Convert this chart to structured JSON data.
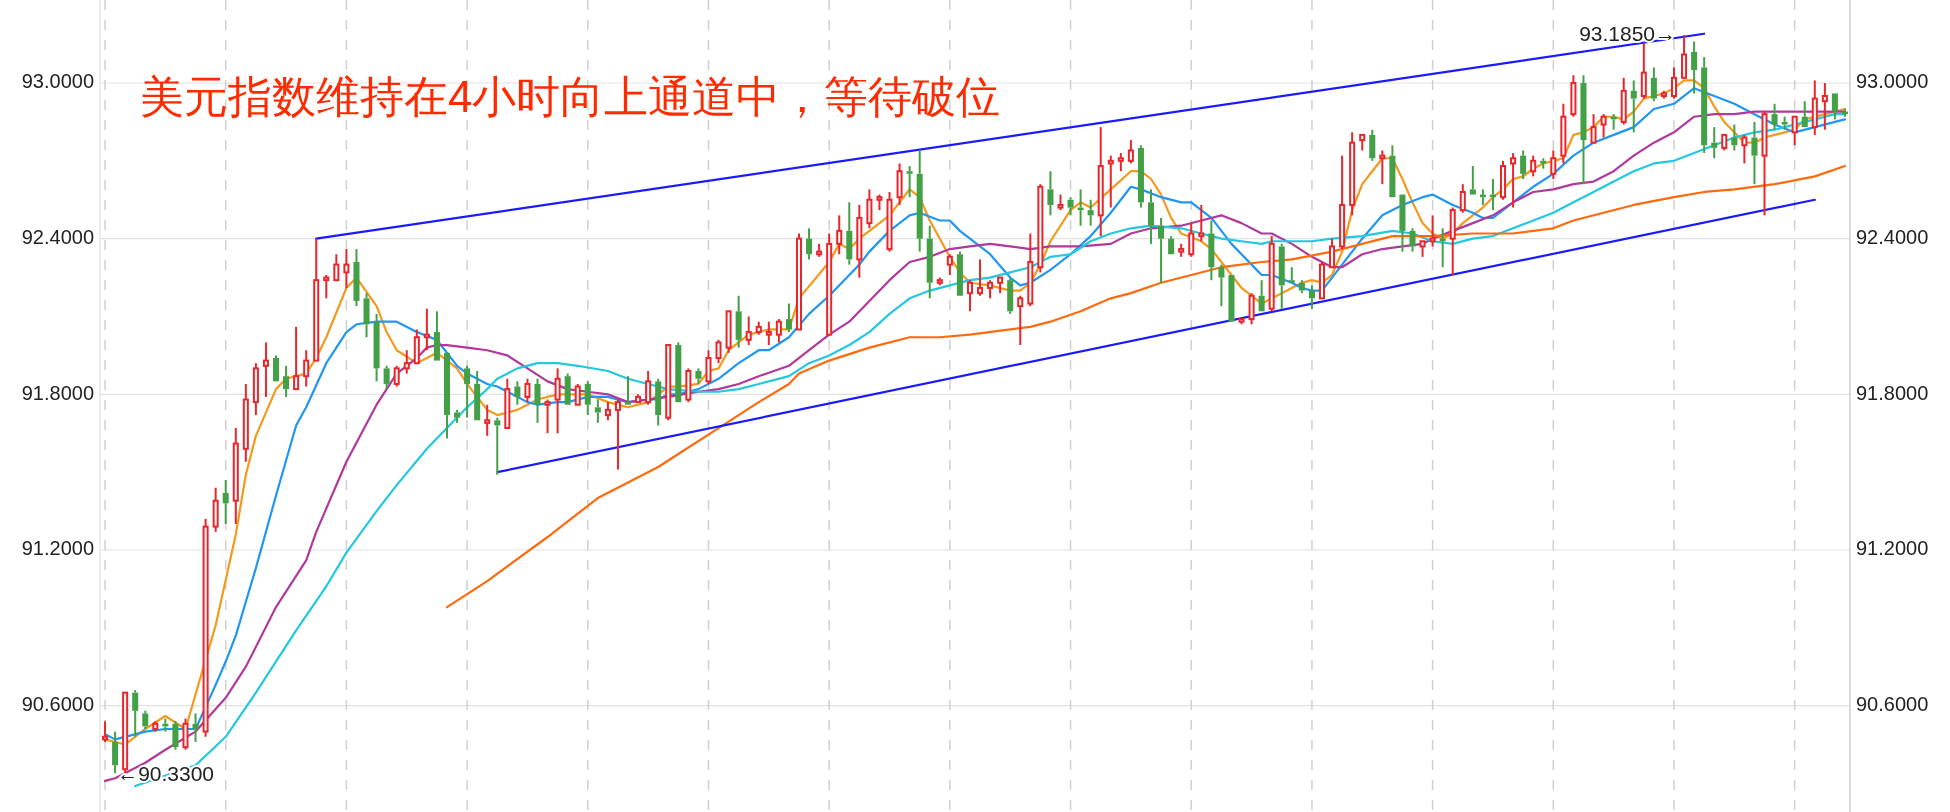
{
  "chart_data": {
    "type": "candlestick",
    "title": "美元指数维持在4小时向上通道中，等待破位",
    "categories": [
      null,
      null,
      null,
      null,
      null,
      null,
      null,
      null,
      null,
      null,
      null,
      null,
      null,
      null,
      null,
      null,
      null,
      null,
      null,
      null,
      null,
      null,
      null,
      null,
      null,
      null,
      null,
      null,
      null,
      null,
      null,
      null,
      null,
      null,
      null,
      null,
      null,
      null,
      null,
      null,
      null,
      null,
      null,
      null,
      null,
      null,
      null,
      null,
      null,
      null,
      null,
      null,
      null,
      null,
      null,
      null,
      null,
      null,
      null,
      null,
      null,
      null,
      null,
      null,
      null,
      null,
      null,
      null,
      null,
      null,
      null,
      null,
      null,
      null,
      null,
      null,
      null,
      null,
      null,
      null,
      null,
      null,
      null,
      null,
      null,
      null,
      null,
      null,
      null,
      null,
      null,
      null,
      null,
      null,
      null,
      null,
      null,
      null,
      null,
      null,
      null,
      null,
      null,
      null,
      null,
      null,
      null,
      null,
      null,
      null,
      null,
      null,
      null,
      null,
      null,
      null,
      null,
      null,
      null,
      null,
      null,
      null,
      null,
      null,
      null,
      null,
      null,
      null,
      null,
      null,
      null,
      null,
      null,
      null,
      null,
      null,
      null,
      null,
      null,
      null,
      null,
      null,
      null,
      null,
      null,
      null,
      null,
      null,
      null,
      null,
      null,
      null,
      null,
      null,
      null,
      null,
      null,
      null,
      null,
      null,
      null,
      null,
      null,
      null,
      null,
      null,
      null,
      null,
      null,
      null,
      null,
      null,
      null,
      null
    ],
    "ohlc": [
      [
        90.47,
        90.54,
        90.46,
        90.48
      ],
      [
        90.46,
        90.5,
        90.34,
        90.37
      ],
      [
        90.355,
        90.65,
        90.33,
        90.65
      ],
      [
        90.65,
        90.66,
        90.48,
        90.58
      ],
      [
        90.57,
        90.58,
        90.51,
        90.52
      ],
      [
        90.51,
        90.54,
        90.5,
        90.53
      ],
      [
        90.53,
        90.55,
        90.5,
        90.52
      ],
      [
        90.53,
        90.54,
        90.43,
        90.44
      ],
      [
        90.44,
        90.55,
        90.43,
        90.53
      ],
      [
        90.53,
        90.57,
        90.46,
        90.51
      ],
      [
        90.5,
        91.32,
        90.48,
        91.29
      ],
      [
        91.29,
        91.44,
        91.27,
        91.39
      ],
      [
        91.42,
        91.47,
        91.3,
        91.38
      ],
      [
        91.39,
        91.67,
        91.3,
        91.61
      ],
      [
        91.59,
        91.84,
        91.54,
        91.78
      ],
      [
        91.77,
        91.92,
        91.72,
        91.9
      ],
      [
        91.91,
        92.0,
        91.79,
        91.93
      ],
      [
        91.94,
        91.95,
        91.85,
        91.85
      ],
      [
        91.87,
        91.91,
        91.79,
        91.82
      ],
      [
        91.82,
        92.06,
        91.82,
        91.87
      ],
      [
        91.87,
        91.97,
        91.83,
        91.93
      ],
      [
        91.93,
        92.4,
        91.93,
        92.24
      ],
      [
        92.24,
        92.26,
        92.17,
        92.25
      ],
      [
        92.24,
        92.34,
        92.24,
        92.3
      ],
      [
        92.27,
        92.36,
        92.21,
        92.3
      ],
      [
        92.31,
        92.36,
        92.14,
        92.16
      ],
      [
        92.17,
        92.19,
        92.02,
        92.07
      ],
      [
        92.08,
        92.11,
        91.85,
        91.9
      ],
      [
        91.9,
        91.91,
        91.82,
        91.84
      ],
      [
        91.84,
        91.91,
        91.83,
        91.9
      ],
      [
        91.9,
        91.97,
        91.88,
        91.92
      ],
      [
        91.92,
        92.05,
        91.92,
        92.02
      ],
      [
        92.02,
        92.13,
        91.97,
        92.03
      ],
      [
        92.04,
        92.12,
        91.93,
        91.93
      ],
      [
        91.96,
        91.96,
        91.63,
        91.72
      ],
      [
        91.73,
        91.74,
        91.69,
        91.71
      ],
      [
        91.9,
        91.91,
        91.71,
        91.84
      ],
      [
        91.84,
        91.89,
        91.7,
        91.7
      ],
      [
        91.69,
        91.76,
        91.64,
        91.7
      ],
      [
        91.7,
        91.71,
        91.49,
        91.68
      ],
      [
        91.67,
        91.86,
        91.67,
        91.82
      ],
      [
        91.83,
        91.85,
        91.76,
        91.79
      ],
      [
        91.79,
        91.86,
        91.77,
        91.84
      ],
      [
        91.84,
        91.86,
        91.69,
        91.76
      ],
      [
        91.76,
        91.78,
        91.65,
        91.77
      ],
      [
        91.78,
        91.9,
        91.65,
        91.86
      ],
      [
        91.87,
        91.88,
        91.76,
        91.76
      ],
      [
        91.76,
        91.84,
        91.76,
        91.83
      ],
      [
        91.84,
        91.85,
        91.72,
        91.76
      ],
      [
        91.75,
        91.78,
        91.69,
        91.73
      ],
      [
        91.72,
        91.77,
        91.7,
        91.74
      ],
      [
        91.74,
        91.78,
        91.51,
        91.77
      ],
      [
        91.77,
        91.87,
        91.76,
        91.76
      ],
      [
        91.77,
        91.8,
        91.77,
        91.79
      ],
      [
        91.77,
        91.89,
        91.76,
        91.85
      ],
      [
        91.85,
        91.86,
        91.68,
        91.72
      ],
      [
        91.71,
        91.99,
        91.7,
        91.99
      ],
      [
        91.99,
        92.0,
        91.77,
        91.77
      ],
      [
        91.78,
        91.9,
        91.77,
        91.89
      ],
      [
        91.89,
        91.9,
        91.84,
        91.86
      ],
      [
        91.85,
        91.97,
        91.84,
        91.94
      ],
      [
        91.94,
        92.01,
        91.92,
        92.0
      ],
      [
        91.98,
        92.12,
        91.96,
        92.12
      ],
      [
        92.12,
        92.18,
        91.98,
        92.01
      ],
      [
        92.01,
        92.1,
        91.99,
        92.04
      ],
      [
        92.04,
        92.08,
        92.03,
        92.06
      ],
      [
        92.03,
        92.08,
        91.99,
        92.04
      ],
      [
        92.03,
        92.09,
        92.0,
        92.08
      ],
      [
        92.09,
        92.15,
        92.04,
        92.05
      ],
      [
        92.05,
        92.42,
        92.05,
        92.4
      ],
      [
        92.4,
        92.44,
        92.32,
        92.34
      ],
      [
        92.34,
        92.38,
        92.33,
        92.35
      ],
      [
        92.03,
        92.42,
        92.03,
        92.38
      ],
      [
        92.38,
        92.49,
        92.34,
        92.43
      ],
      [
        92.43,
        92.54,
        92.3,
        92.32
      ],
      [
        92.32,
        92.53,
        92.25,
        92.48
      ],
      [
        92.46,
        92.59,
        92.44,
        92.55
      ],
      [
        92.55,
        92.57,
        92.51,
        92.56
      ],
      [
        92.36,
        92.58,
        92.35,
        92.55
      ],
      [
        92.56,
        92.69,
        92.53,
        92.66
      ],
      [
        92.66,
        92.68,
        92.56,
        92.65
      ],
      [
        92.65,
        92.74,
        92.35,
        92.4
      ],
      [
        92.4,
        92.45,
        92.17,
        92.23
      ],
      [
        92.23,
        92.25,
        92.22,
        92.24
      ],
      [
        92.3,
        92.34,
        92.26,
        92.33
      ],
      [
        92.34,
        92.35,
        92.18,
        92.18
      ],
      [
        92.19,
        92.24,
        92.12,
        92.23
      ],
      [
        92.19,
        92.32,
        92.18,
        92.21
      ],
      [
        92.21,
        92.24,
        92.17,
        92.23
      ],
      [
        92.23,
        92.25,
        92.19,
        92.25
      ],
      [
        92.24,
        92.25,
        92.11,
        92.12
      ],
      [
        92.14,
        92.18,
        91.99,
        92.17
      ],
      [
        92.15,
        92.42,
        92.14,
        92.31
      ],
      [
        92.29,
        92.61,
        92.27,
        92.6
      ],
      [
        92.59,
        92.66,
        92.49,
        92.53
      ],
      [
        92.52,
        92.57,
        92.51,
        92.53
      ],
      [
        92.55,
        92.56,
        92.49,
        92.52
      ],
      [
        92.52,
        92.59,
        92.45,
        92.51
      ],
      [
        92.51,
        92.55,
        92.45,
        92.49
      ],
      [
        92.49,
        92.83,
        92.41,
        92.68
      ],
      [
        92.69,
        92.72,
        92.52,
        92.7
      ],
      [
        92.7,
        92.73,
        92.66,
        92.71
      ],
      [
        92.7,
        92.78,
        92.69,
        92.74
      ],
      [
        92.75,
        92.76,
        92.52,
        92.54
      ],
      [
        92.54,
        92.59,
        92.38,
        92.45
      ],
      [
        92.45,
        92.48,
        92.23,
        92.4
      ],
      [
        92.4,
        92.41,
        92.34,
        92.34
      ],
      [
        92.35,
        92.38,
        92.33,
        92.36
      ],
      [
        92.34,
        92.46,
        92.33,
        92.42
      ],
      [
        92.41,
        92.53,
        92.39,
        92.42
      ],
      [
        92.42,
        92.47,
        92.24,
        92.29
      ],
      [
        92.29,
        92.3,
        92.14,
        92.25
      ],
      [
        92.26,
        92.26,
        92.08,
        92.08
      ],
      [
        92.08,
        92.09,
        92.07,
        92.09
      ],
      [
        92.09,
        92.19,
        92.07,
        92.18
      ],
      [
        92.18,
        92.24,
        92.12,
        92.12
      ],
      [
        92.13,
        92.41,
        92.12,
        92.38
      ],
      [
        92.37,
        92.38,
        92.13,
        92.22
      ],
      [
        92.24,
        92.29,
        92.23,
        92.23
      ],
      [
        92.23,
        92.24,
        92.19,
        92.2
      ],
      [
        92.2,
        92.22,
        92.13,
        92.17
      ],
      [
        92.17,
        92.31,
        92.17,
        92.3
      ],
      [
        92.29,
        92.4,
        92.29,
        92.37
      ],
      [
        92.37,
        92.72,
        92.36,
        92.53
      ],
      [
        92.53,
        92.81,
        92.49,
        92.77
      ],
      [
        92.78,
        92.8,
        92.74,
        92.8
      ],
      [
        92.8,
        92.82,
        92.7,
        92.71
      ],
      [
        92.71,
        92.74,
        92.61,
        92.72
      ],
      [
        92.72,
        92.76,
        92.56,
        92.56
      ],
      [
        92.57,
        92.57,
        92.35,
        92.43
      ],
      [
        92.43,
        92.44,
        92.35,
        92.37
      ],
      [
        92.37,
        92.39,
        92.33,
        92.39
      ],
      [
        92.39,
        92.49,
        92.37,
        92.4
      ],
      [
        92.4,
        92.44,
        92.29,
        92.39
      ],
      [
        92.4,
        92.52,
        92.26,
        92.51
      ],
      [
        92.51,
        92.61,
        92.5,
        92.58
      ],
      [
        92.59,
        92.68,
        92.57,
        92.57
      ],
      [
        92.57,
        92.59,
        92.53,
        92.56
      ],
      [
        92.57,
        92.63,
        92.51,
        92.56
      ],
      [
        92.56,
        92.7,
        92.55,
        92.68
      ],
      [
        92.69,
        92.73,
        92.52,
        92.71
      ],
      [
        92.72,
        92.74,
        92.63,
        92.65
      ],
      [
        92.66,
        92.72,
        92.64,
        92.7
      ],
      [
        92.7,
        92.71,
        92.67,
        92.69
      ],
      [
        92.65,
        92.74,
        92.63,
        92.71
      ],
      [
        92.72,
        92.92,
        92.69,
        92.87
      ],
      [
        92.88,
        93.03,
        92.87,
        93.0
      ],
      [
        93.0,
        93.03,
        92.61,
        92.78
      ],
      [
        92.77,
        92.88,
        92.77,
        92.83
      ],
      [
        92.84,
        92.88,
        92.79,
        92.87
      ],
      [
        92.87,
        92.88,
        92.82,
        92.86
      ],
      [
        92.85,
        93.02,
        92.84,
        92.97
      ],
      [
        92.97,
        93.01,
        92.81,
        92.94
      ],
      [
        92.95,
        93.155,
        92.94,
        93.04
      ],
      [
        93.02,
        93.06,
        92.93,
        92.94
      ],
      [
        92.95,
        92.97,
        92.94,
        92.96
      ],
      [
        92.95,
        93.06,
        92.94,
        93.02
      ],
      [
        93.02,
        93.185,
        93.02,
        93.11
      ],
      [
        93.12,
        93.16,
        92.96,
        93.05
      ],
      [
        93.06,
        93.1,
        92.73,
        92.76
      ],
      [
        92.77,
        92.83,
        92.71,
        92.75
      ],
      [
        92.75,
        92.8,
        92.74,
        92.8
      ],
      [
        92.79,
        92.84,
        92.74,
        92.76
      ],
      [
        92.76,
        92.8,
        92.69,
        92.79
      ],
      [
        92.79,
        92.85,
        92.61,
        92.72
      ],
      [
        92.72,
        92.89,
        92.49,
        92.88
      ],
      [
        92.88,
        92.92,
        92.82,
        92.84
      ],
      [
        92.85,
        92.87,
        92.82,
        92.84
      ],
      [
        92.81,
        92.87,
        92.76,
        92.87
      ],
      [
        92.87,
        92.93,
        92.83,
        92.83
      ],
      [
        92.83,
        93.01,
        92.8,
        92.94
      ],
      [
        92.93,
        93.0,
        92.82,
        92.95
      ],
      [
        92.96,
        92.96,
        92.86,
        92.89
      ],
      [
        92.89,
        92.9,
        92.87,
        92.88
      ]
    ],
    "series": [
      {
        "type": "line",
        "color": "#f39a1e",
        "values": [
          90.47,
          null,
          90.45,
          null,
          90.51,
          null,
          90.56,
          null,
          90.51,
          null,
          null,
          90.91,
          null,
          91.26,
          91.49,
          91.64,
          null,
          91.82,
          91.86,
          null,
          91.88,
          91.94,
          92.02,
          null,
          92.21,
          92.25,
          null,
          92.14,
          92.04,
          91.97,
          null,
          91.92,
          null,
          91.96,
          null,
          91.9,
          91.84,
          null,
          91.74,
          91.72,
          null,
          91.74,
          null,
          91.78,
          null,
          91.8,
          null,
          null,
          91.8,
          null,
          91.77,
          null,
          91.75,
          null,
          91.77,
          null,
          91.83,
          91.83,
          null,
          91.84,
          91.89,
          91.9,
          91.97,
          null,
          92.03,
          null,
          92.05,
          null,
          92.05,
          92.17,
          null,
          null,
          92.31,
          92.38,
          92.36,
          92.4,
          null,
          92.46,
          92.49,
          null,
          92.59,
          92.56,
          92.47,
          null,
          92.33,
          92.27,
          92.23,
          null,
          92.22,
          null,
          92.2,
          92.2,
          92.23,
          92.3,
          92.39,
          null,
          92.51,
          92.54,
          92.52,
          null,
          92.59,
          null,
          92.66,
          92.66,
          92.63,
          92.57,
          92.48,
          92.42,
          null,
          92.39,
          92.36,
          92.31,
          92.26,
          92.21,
          92.18,
          92.15,
          null,
          92.19,
          null,
          92.23,
          92.24,
          92.23,
          92.26,
          92.35,
          92.51,
          92.61,
          92.66,
          92.71,
          92.71,
          92.63,
          92.54,
          92.46,
          92.42,
          92.4,
          92.42,
          92.46,
          92.49,
          92.52,
          92.56,
          92.59,
          92.63,
          92.64,
          92.67,
          92.69,
          92.7,
          92.71,
          92.8,
          92.81,
          92.83,
          92.87,
          92.87,
          92.86,
          92.89,
          92.94,
          92.95,
          92.96,
          92.98,
          93.01,
          93.01,
          92.98,
          92.91,
          92.85,
          92.81,
          92.77,
          92.77,
          92.79,
          92.8,
          92.81,
          92.82,
          92.86,
          92.87,
          92.88,
          92.89,
          92.9
        ]
      },
      {
        "type": "line",
        "color": "#2196f3",
        "values": [
          90.49,
          90.47,
          null,
          null,
          90.5,
          null,
          90.51,
          null,
          null,
          90.51,
          null,
          90.68,
          90.77,
          90.87,
          null,
          91.13,
          null,
          91.41,
          null,
          91.68,
          91.75,
          null,
          91.92,
          null,
          92.04,
          92.07,
          null,
          92.08,
          null,
          92.08,
          null,
          92.04,
          null,
          92.01,
          null,
          91.91,
          91.88,
          null,
          91.84,
          91.83,
          91.81,
          null,
          91.77,
          91.76,
          null,
          91.77,
          91.77,
          null,
          91.79,
          null,
          91.79,
          null,
          91.77,
          null,
          91.78,
          91.78,
          91.8,
          91.8,
          null,
          91.82,
          null,
          91.86,
          null,
          91.92,
          null,
          91.97,
          91.97,
          null,
          92.02,
          null,
          92.11,
          null,
          92.18,
          null,
          92.26,
          92.3,
          92.35,
          null,
          92.43,
          null,
          92.49,
          92.5,
          null,
          92.47,
          92.47,
          92.43,
          92.4,
          null,
          92.34,
          null,
          92.25,
          92.22,
          92.23,
          null,
          92.28,
          null,
          92.34,
          null,
          92.41,
          null,
          92.5,
          null,
          92.6,
          92.59,
          null,
          92.56,
          null,
          92.54,
          92.54,
          null,
          92.48,
          null,
          92.38,
          null,
          92.3,
          92.26,
          92.26,
          null,
          92.23,
          92.21,
          92.2,
          92.2,
          null,
          92.3,
          null,
          92.4,
          null,
          92.49,
          null,
          92.53,
          null,
          92.56,
          92.57,
          null,
          92.53,
          null,
          92.5,
          92.48,
          92.48,
          null,
          92.54,
          null,
          92.6,
          null,
          92.65,
          null,
          92.72,
          null,
          92.77,
          null,
          92.8,
          null,
          92.83,
          null,
          92.9,
          null,
          92.92,
          null,
          92.98,
          null,
          92.95,
          null,
          92.92,
          null,
          92.88,
          null,
          92.84,
          null,
          92.81,
          null,
          92.83,
          null,
          92.85,
          92.86
        ]
      },
      {
        "type": "line",
        "color": "#b0399b",
        "values": [
          90.31,
          90.32,
          null,
          null,
          90.38,
          null,
          90.43,
          null,
          null,
          90.5,
          null,
          null,
          90.63,
          null,
          90.75,
          null,
          null,
          90.98,
          null,
          null,
          91.16,
          91.27,
          null,
          null,
          91.54,
          null,
          null,
          91.76,
          null,
          91.88,
          null,
          91.94,
          91.98,
          91.99,
          91.99,
          null,
          91.98,
          null,
          91.97,
          null,
          91.95,
          null,
          91.9,
          null,
          91.85,
          null,
          91.82,
          null,
          91.81,
          null,
          91.8,
          null,
          91.77,
          null,
          91.78,
          null,
          91.79,
          null,
          null,
          91.81,
          null,
          91.82,
          null,
          91.84,
          null,
          91.87,
          null,
          null,
          91.91,
          null,
          91.97,
          null,
          92.03,
          null,
          92.08,
          null,
          92.16,
          null,
          92.24,
          null,
          92.31,
          null,
          92.33,
          null,
          92.36,
          null,
          92.37,
          null,
          92.38,
          null,
          92.37,
          null,
          92.36,
          null,
          92.37,
          null,
          null,
          92.37,
          null,
          null,
          92.38,
          null,
          92.42,
          null,
          92.44,
          null,
          null,
          92.45,
          null,
          92.47,
          null,
          92.49,
          null,
          92.46,
          null,
          92.42,
          92.42,
          null,
          92.38,
          null,
          92.33,
          null,
          92.29,
          92.29,
          null,
          92.34,
          null,
          92.36,
          null,
          92.37,
          null,
          92.38,
          92.4,
          null,
          92.43,
          null,
          92.46,
          null,
          92.49,
          null,
          92.54,
          null,
          92.58,
          null,
          92.59,
          null,
          92.61,
          null,
          92.62,
          null,
          92.66,
          null,
          92.72,
          null,
          92.77,
          null,
          92.81,
          null,
          92.87,
          null,
          92.88,
          null,
          92.88,
          null,
          92.89,
          null,
          92.89,
          null,
          92.89,
          null,
          92.89,
          null,
          92.89,
          92.89
        ]
      },
      {
        "type": "line",
        "color": "#22c8e0",
        "values": [
          null,
          null,
          null,
          90.29,
          null,
          null,
          null,
          null,
          null,
          90.37,
          null,
          null,
          90.48,
          null,
          null,
          90.65,
          null,
          null,
          null,
          90.89,
          null,
          null,
          91.06,
          null,
          91.19,
          null,
          null,
          91.35,
          null,
          91.45,
          null,
          null,
          91.59,
          null,
          91.67,
          null,
          91.75,
          null,
          91.82,
          91.86,
          null,
          91.9,
          null,
          91.92,
          null,
          91.92,
          null,
          91.91,
          null,
          null,
          91.89,
          null,
          91.86,
          null,
          91.84,
          null,
          91.82,
          null,
          null,
          91.81,
          null,
          91.81,
          null,
          91.82,
          null,
          91.84,
          null,
          null,
          91.87,
          null,
          91.92,
          null,
          91.95,
          null,
          91.99,
          null,
          92.04,
          null,
          92.11,
          null,
          92.17,
          null,
          92.2,
          null,
          92.22,
          null,
          92.24,
          null,
          92.25,
          null,
          92.27,
          null,
          92.29,
          null,
          92.33,
          null,
          92.34,
          null,
          92.39,
          null,
          92.42,
          null,
          92.44,
          null,
          92.45,
          null,
          null,
          92.44,
          null,
          92.42,
          null,
          92.4,
          null,
          92.39,
          null,
          92.38,
          92.39,
          null,
          null,
          null,
          92.39,
          null,
          92.4,
          null,
          null,
          92.41,
          null,
          null,
          92.43,
          null,
          92.42,
          null,
          92.39,
          null,
          92.38,
          null,
          92.4,
          null,
          92.41,
          null,
          92.44,
          null,
          92.47,
          null,
          92.5,
          null,
          92.54,
          null,
          92.58,
          null,
          92.62,
          null,
          92.66,
          null,
          92.69,
          null,
          92.7,
          null,
          92.73,
          null,
          92.76,
          null,
          92.79,
          null,
          92.81,
          null,
          92.82,
          null,
          92.84,
          null,
          92.86,
          null,
          92.88,
          92.88
        ]
      },
      {
        "type": "line",
        "color": "#ff6a0d",
        "values": [
          null,
          null,
          null,
          null,
          null,
          null,
          null,
          null,
          null,
          null,
          null,
          null,
          null,
          null,
          null,
          null,
          null,
          null,
          null,
          null,
          null,
          null,
          null,
          null,
          null,
          null,
          null,
          null,
          null,
          null,
          null,
          null,
          null,
          null,
          90.98,
          null,
          null,
          null,
          91.08,
          null,
          null,
          null,
          null,
          null,
          91.25,
          null,
          null,
          null,
          null,
          91.4,
          null,
          null,
          null,
          null,
          null,
          91.52,
          null,
          91.57,
          null,
          null,
          null,
          91.67,
          null,
          null,
          null,
          91.77,
          null,
          null,
          91.84,
          91.88,
          null,
          null,
          91.93,
          null,
          null,
          null,
          91.98,
          null,
          null,
          null,
          92.02,
          null,
          null,
          92.02,
          null,
          null,
          92.03,
          null,
          null,
          null,
          null,
          null,
          92.06,
          null,
          92.08,
          null,
          null,
          92.12,
          null,
          null,
          92.17,
          null,
          92.19,
          null,
          null,
          92.23,
          null,
          null,
          92.26,
          null,
          null,
          92.29,
          null,
          null,
          null,
          92.31,
          null,
          null,
          92.32,
          null,
          null,
          null,
          92.35,
          null,
          null,
          92.38,
          null,
          null,
          92.41,
          null,
          null,
          null,
          92.41,
          null,
          null,
          null,
          92.42,
          null,
          null,
          null,
          92.42,
          null,
          92.43,
          null,
          92.44,
          null,
          92.47,
          null,
          null,
          92.5,
          null,
          null,
          92.53,
          null,
          null,
          null,
          92.56,
          null,
          null,
          92.58,
          null,
          null,
          92.59,
          null,
          null,
          null,
          92.61,
          null,
          null,
          null,
          92.64,
          null,
          null,
          92.68
        ]
      },
      {
        "type": "line",
        "color": "#1a1aff",
        "values": [
          null,
          null,
          null,
          null,
          null,
          null,
          null,
          null,
          null,
          null,
          null,
          null,
          null,
          null,
          null,
          null,
          null,
          null,
          null,
          null,
          null,
          92.4,
          null,
          null,
          null,
          null,
          null,
          null,
          null,
          null,
          null,
          null,
          null,
          null,
          null,
          null,
          null,
          null,
          null,
          null,
          null,
          null,
          null,
          null,
          null,
          null,
          null,
          null,
          null,
          null,
          null,
          null,
          null,
          null,
          null,
          null,
          null,
          null,
          null,
          null,
          null,
          null,
          null,
          null,
          null,
          null,
          null,
          null,
          null,
          null,
          null,
          null,
          null,
          null,
          null,
          null,
          null,
          null,
          null,
          null,
          null,
          null,
          null,
          null,
          null,
          null,
          null,
          null,
          null,
          null,
          null,
          null,
          null,
          null,
          null,
          null,
          null,
          null,
          null,
          null,
          null,
          null,
          null,
          null,
          null,
          null,
          null,
          null,
          null,
          null,
          null,
          null,
          null,
          null,
          null,
          null,
          null,
          null,
          null,
          null,
          null,
          null,
          null,
          null,
          null,
          null,
          null,
          null,
          null,
          null,
          null,
          null,
          null,
          null,
          null,
          null,
          null,
          null,
          null,
          null,
          null,
          null,
          null,
          null,
          null,
          null,
          null,
          null,
          null,
          null,
          null,
          null,
          null,
          null,
          null,
          null,
          null,
          null,
          null,
          93.19,
          null,
          null,
          null,
          null,
          null,
          null,
          null,
          null,
          null,
          null,
          null,
          null,
          null,
          null
        ]
      },
      {
        "type": "line",
        "color": "#1a1aff",
        "values": [
          null,
          null,
          null,
          null,
          null,
          null,
          null,
          null,
          null,
          null,
          null,
          null,
          null,
          null,
          null,
          null,
          null,
          null,
          null,
          null,
          null,
          null,
          null,
          null,
          null,
          null,
          null,
          null,
          null,
          null,
          null,
          null,
          null,
          null,
          null,
          null,
          null,
          null,
          null,
          91.5,
          null,
          null,
          null,
          null,
          null,
          null,
          null,
          null,
          null,
          null,
          null,
          null,
          null,
          null,
          null,
          null,
          null,
          null,
          null,
          null,
          null,
          null,
          null,
          null,
          null,
          null,
          null,
          null,
          null,
          null,
          null,
          null,
          null,
          null,
          null,
          null,
          null,
          null,
          null,
          null,
          null,
          null,
          null,
          null,
          null,
          null,
          null,
          null,
          null,
          null,
          null,
          null,
          null,
          null,
          null,
          null,
          null,
          null,
          null,
          null,
          null,
          null,
          null,
          null,
          null,
          null,
          null,
          null,
          null,
          null,
          null,
          null,
          null,
          null,
          null,
          null,
          null,
          null,
          null,
          null,
          null,
          null,
          null,
          null,
          null,
          null,
          null,
          null,
          null,
          null,
          null,
          null,
          null,
          null,
          null,
          null,
          null,
          null,
          null,
          null,
          null,
          null,
          null,
          null,
          null,
          null,
          null,
          null,
          null,
          null,
          null,
          null,
          null,
          null,
          null,
          null,
          null,
          null,
          null,
          null,
          null,
          null,
          null,
          null,
          null,
          null,
          null,
          null,
          null,
          null,
          92.55,
          null,
          null,
          null
        ]
      }
    ],
    "annotations": [
      "93.1850→",
      "←90.3300"
    ],
    "ylim": [
      90.19,
      93.32
    ],
    "yticks": [
      {
        "value": 90.6,
        "label": "90.6000"
      },
      {
        "value": 91.2,
        "label": "91.2000"
      },
      {
        "value": 91.8,
        "label": "91.8000"
      },
      {
        "value": 92.4,
        "label": "92.4000"
      },
      {
        "value": 93.0,
        "label": "93.0000"
      }
    ],
    "y2lim": [
      90.19,
      93.32
    ],
    "y2ticks": [
      {
        "value": 90.6,
        "label": "90.6000"
      },
      {
        "value": 91.2,
        "label": "91.2000"
      },
      {
        "value": 91.8,
        "label": "91.8000"
      },
      {
        "value": 92.4,
        "label": "92.4000"
      },
      {
        "value": 93.0,
        "label": "93.0000"
      }
    ],
    "grid": "y"
  }
}
